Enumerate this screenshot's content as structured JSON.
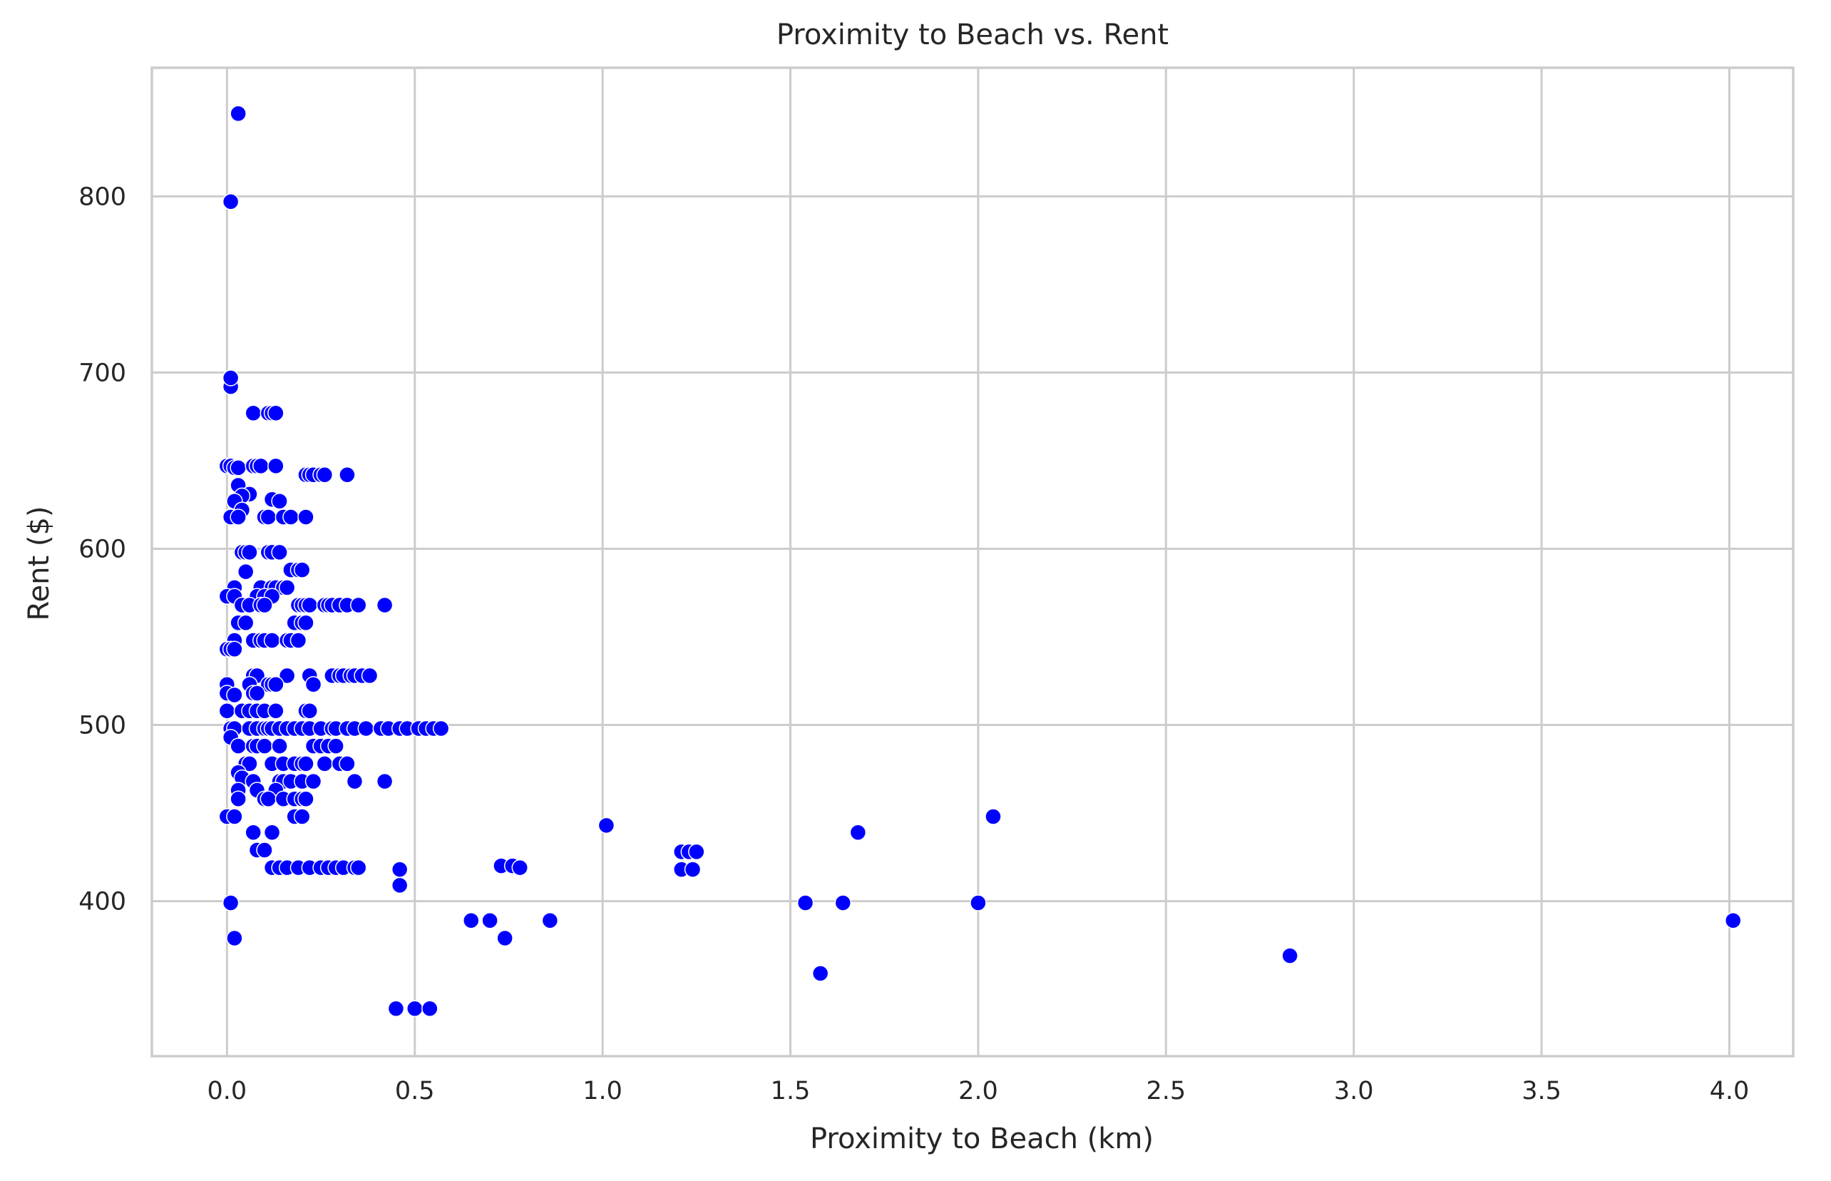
{
  "chart_data": {
    "type": "scatter",
    "title": "Proximity to Beach vs. Rent",
    "xlabel": "Proximity to Beach (km)",
    "ylabel": "Rent ($)",
    "xlim": [
      -0.2,
      4.17
    ],
    "ylim": [
      312,
      873
    ],
    "x_ticks": [
      0.0,
      0.5,
      1.0,
      1.5,
      2.0,
      2.5,
      3.0,
      3.5,
      4.0
    ],
    "x_tick_labels": [
      "0.0",
      "0.5",
      "1.0",
      "1.5",
      "2.0",
      "2.5",
      "3.0",
      "3.5",
      "4.0"
    ],
    "y_ticks": [
      400,
      500,
      600,
      700,
      800
    ],
    "y_tick_labels": [
      "400",
      "500",
      "600",
      "700",
      "800"
    ],
    "grid": true,
    "legend": "none",
    "marker_color": "#0000ff",
    "series": [
      {
        "points": [
          [
            0.03,
            847
          ],
          [
            0.01,
            797
          ],
          [
            0.01,
            692
          ],
          [
            0.01,
            697
          ],
          [
            0.07,
            677
          ],
          [
            0.11,
            677
          ],
          [
            0.12,
            677
          ],
          [
            0.13,
            677
          ],
          [
            0.0,
            647
          ],
          [
            0.01,
            647
          ],
          [
            0.02,
            646
          ],
          [
            0.03,
            646
          ],
          [
            0.07,
            647
          ],
          [
            0.08,
            647
          ],
          [
            0.09,
            647
          ],
          [
            0.13,
            647
          ],
          [
            0.21,
            642
          ],
          [
            0.22,
            642
          ],
          [
            0.23,
            642
          ],
          [
            0.25,
            642
          ],
          [
            0.26,
            642
          ],
          [
            0.32,
            642
          ],
          [
            0.03,
            636
          ],
          [
            0.06,
            631
          ],
          [
            0.04,
            630
          ],
          [
            0.02,
            627
          ],
          [
            0.12,
            628
          ],
          [
            0.14,
            627
          ],
          [
            0.04,
            622
          ],
          [
            0.01,
            618
          ],
          [
            0.03,
            618
          ],
          [
            0.1,
            618
          ],
          [
            0.11,
            618
          ],
          [
            0.15,
            618
          ],
          [
            0.17,
            618
          ],
          [
            0.21,
            618
          ],
          [
            0.04,
            598
          ],
          [
            0.05,
            598
          ],
          [
            0.06,
            598
          ],
          [
            0.11,
            598
          ],
          [
            0.12,
            598
          ],
          [
            0.14,
            598
          ],
          [
            0.17,
            588
          ],
          [
            0.19,
            588
          ],
          [
            0.2,
            588
          ],
          [
            0.05,
            587
          ],
          [
            0.02,
            578
          ],
          [
            0.09,
            578
          ],
          [
            0.12,
            578
          ],
          [
            0.13,
            578
          ],
          [
            0.15,
            578
          ],
          [
            0.16,
            578
          ],
          [
            0.0,
            573
          ],
          [
            0.02,
            573
          ],
          [
            0.08,
            573
          ],
          [
            0.1,
            573
          ],
          [
            0.12,
            573
          ],
          [
            0.04,
            568
          ],
          [
            0.06,
            568
          ],
          [
            0.09,
            568
          ],
          [
            0.1,
            568
          ],
          [
            0.19,
            568
          ],
          [
            0.2,
            568
          ],
          [
            0.21,
            568
          ],
          [
            0.22,
            568
          ],
          [
            0.26,
            568
          ],
          [
            0.27,
            568
          ],
          [
            0.28,
            568
          ],
          [
            0.3,
            568
          ],
          [
            0.32,
            568
          ],
          [
            0.35,
            568
          ],
          [
            0.42,
            568
          ],
          [
            0.03,
            558
          ],
          [
            0.05,
            558
          ],
          [
            0.18,
            558
          ],
          [
            0.2,
            558
          ],
          [
            0.21,
            558
          ],
          [
            0.02,
            548
          ],
          [
            0.07,
            548
          ],
          [
            0.09,
            548
          ],
          [
            0.1,
            548
          ],
          [
            0.12,
            548
          ],
          [
            0.16,
            548
          ],
          [
            0.17,
            548
          ],
          [
            0.19,
            548
          ],
          [
            0.0,
            543
          ],
          [
            0.01,
            543
          ],
          [
            0.02,
            543
          ],
          [
            0.07,
            528
          ],
          [
            0.08,
            528
          ],
          [
            0.16,
            528
          ],
          [
            0.22,
            528
          ],
          [
            0.28,
            528
          ],
          [
            0.3,
            528
          ],
          [
            0.31,
            528
          ],
          [
            0.33,
            528
          ],
          [
            0.34,
            528
          ],
          [
            0.36,
            528
          ],
          [
            0.38,
            528
          ],
          [
            0.0,
            523
          ],
          [
            0.06,
            523
          ],
          [
            0.11,
            523
          ],
          [
            0.12,
            523
          ],
          [
            0.13,
            523
          ],
          [
            0.23,
            523
          ],
          [
            0.0,
            518
          ],
          [
            0.02,
            517
          ],
          [
            0.07,
            518
          ],
          [
            0.08,
            518
          ],
          [
            0.0,
            508
          ],
          [
            0.04,
            508
          ],
          [
            0.06,
            508
          ],
          [
            0.08,
            508
          ],
          [
            0.1,
            508
          ],
          [
            0.13,
            508
          ],
          [
            0.21,
            508
          ],
          [
            0.22,
            508
          ],
          [
            0.01,
            498
          ],
          [
            0.02,
            498
          ],
          [
            0.06,
            498
          ],
          [
            0.08,
            498
          ],
          [
            0.1,
            498
          ],
          [
            0.11,
            498
          ],
          [
            0.12,
            498
          ],
          [
            0.14,
            498
          ],
          [
            0.16,
            498
          ],
          [
            0.18,
            498
          ],
          [
            0.2,
            498
          ],
          [
            0.22,
            498
          ],
          [
            0.25,
            498
          ],
          [
            0.28,
            498
          ],
          [
            0.29,
            498
          ],
          [
            0.32,
            498
          ],
          [
            0.34,
            498
          ],
          [
            0.37,
            498
          ],
          [
            0.41,
            498
          ],
          [
            0.43,
            498
          ],
          [
            0.46,
            498
          ],
          [
            0.48,
            498
          ],
          [
            0.51,
            498
          ],
          [
            0.53,
            498
          ],
          [
            0.55,
            498
          ],
          [
            0.57,
            498
          ],
          [
            0.01,
            493
          ],
          [
            0.03,
            488
          ],
          [
            0.07,
            488
          ],
          [
            0.08,
            488
          ],
          [
            0.1,
            488
          ],
          [
            0.14,
            488
          ],
          [
            0.23,
            488
          ],
          [
            0.25,
            488
          ],
          [
            0.27,
            488
          ],
          [
            0.29,
            488
          ],
          [
            0.05,
            478
          ],
          [
            0.06,
            478
          ],
          [
            0.12,
            478
          ],
          [
            0.15,
            478
          ],
          [
            0.18,
            478
          ],
          [
            0.2,
            478
          ],
          [
            0.21,
            478
          ],
          [
            0.26,
            478
          ],
          [
            0.3,
            478
          ],
          [
            0.32,
            478
          ],
          [
            0.03,
            473
          ],
          [
            0.04,
            470
          ],
          [
            0.07,
            468
          ],
          [
            0.14,
            468
          ],
          [
            0.15,
            468
          ],
          [
            0.17,
            468
          ],
          [
            0.2,
            468
          ],
          [
            0.23,
            468
          ],
          [
            0.34,
            468
          ],
          [
            0.42,
            468
          ],
          [
            0.03,
            463
          ],
          [
            0.08,
            463
          ],
          [
            0.13,
            463
          ],
          [
            0.03,
            458
          ],
          [
            0.1,
            458
          ],
          [
            0.11,
            458
          ],
          [
            0.15,
            458
          ],
          [
            0.18,
            458
          ],
          [
            0.2,
            458
          ],
          [
            0.21,
            458
          ],
          [
            0.0,
            448
          ],
          [
            0.02,
            448
          ],
          [
            0.18,
            448
          ],
          [
            0.2,
            448
          ],
          [
            0.07,
            439
          ],
          [
            0.12,
            439
          ],
          [
            0.08,
            429
          ],
          [
            0.1,
            429
          ],
          [
            0.12,
            419
          ],
          [
            0.14,
            419
          ],
          [
            0.16,
            419
          ],
          [
            0.19,
            419
          ],
          [
            0.22,
            419
          ],
          [
            0.25,
            419
          ],
          [
            0.27,
            419
          ],
          [
            0.29,
            419
          ],
          [
            0.31,
            419
          ],
          [
            0.34,
            419
          ],
          [
            0.35,
            419
          ],
          [
            0.46,
            418
          ],
          [
            0.46,
            409
          ],
          [
            0.73,
            420
          ],
          [
            0.76,
            420
          ],
          [
            0.78,
            419
          ],
          [
            1.01,
            443
          ],
          [
            1.21,
            428
          ],
          [
            1.23,
            428
          ],
          [
            1.25,
            428
          ],
          [
            1.21,
            418
          ],
          [
            1.24,
            418
          ],
          [
            1.68,
            439
          ],
          [
            2.04,
            448
          ],
          [
            0.01,
            399
          ],
          [
            1.54,
            399
          ],
          [
            1.64,
            399
          ],
          [
            2.0,
            399
          ],
          [
            0.65,
            389
          ],
          [
            0.7,
            389
          ],
          [
            0.86,
            389
          ],
          [
            4.01,
            389
          ],
          [
            0.02,
            379
          ],
          [
            0.74,
            379
          ],
          [
            2.83,
            369
          ],
          [
            1.58,
            359
          ],
          [
            0.45,
            339
          ],
          [
            0.5,
            339
          ],
          [
            0.54,
            339
          ]
        ]
      }
    ]
  }
}
